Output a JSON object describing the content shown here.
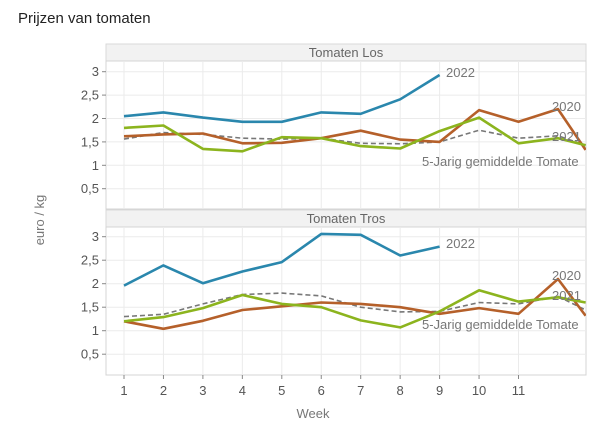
{
  "chart_data": {
    "type": "line",
    "title": "Prijzen van tomaten",
    "xlabel": "Week",
    "ylabel": "euro / kg",
    "x_ticks": [
      "1",
      "2",
      "3",
      "4",
      "5",
      "6",
      "7",
      "8",
      "9",
      "10",
      "11"
    ],
    "xlim": [
      0.55,
      12.7
    ],
    "ylim": [
      0.0,
      3.2
    ],
    "y_ticks": [
      {
        "value": 0.5,
        "label": "0,5"
      },
      {
        "value": 1,
        "label": "1"
      },
      {
        "value": 1.5,
        "label": "1,5"
      },
      {
        "value": 2,
        "label": "2"
      },
      {
        "value": 2.5,
        "label": "2,5"
      },
      {
        "value": 3,
        "label": "3"
      }
    ],
    "grid": true,
    "legend": "none (direct labels at line ends)",
    "panels": [
      {
        "strip": "Tomaten Los",
        "series": [
          {
            "name": "2022",
            "label": "2022",
            "color": "#2a87ad",
            "dashed": false,
            "x": [
              1,
              2,
              3,
              4,
              5,
              6,
              7,
              8,
              9
            ],
            "values": [
              2.05,
              2.13,
              2.02,
              1.93,
              1.93,
              2.13,
              2.1,
              2.41,
              2.93
            ]
          },
          {
            "name": "2020",
            "label": "2020",
            "color": "#b5602a",
            "dashed": false,
            "x": [
              1,
              2,
              3,
              4,
              5,
              6,
              7,
              8,
              9,
              10,
              11,
              12,
              12.7
            ],
            "values": [
              1.62,
              1.66,
              1.68,
              1.47,
              1.48,
              1.58,
              1.74,
              1.55,
              1.5,
              2.18,
              1.93,
              2.2,
              1.33
            ]
          },
          {
            "name": "2021",
            "label": "2021",
            "color": "#8cb41e",
            "dashed": false,
            "x": [
              1,
              2,
              3,
              4,
              5,
              6,
              7,
              8,
              9,
              10,
              11,
              12,
              12.7
            ],
            "values": [
              1.8,
              1.85,
              1.35,
              1.3,
              1.6,
              1.58,
              1.41,
              1.36,
              1.73,
              2.02,
              1.47,
              1.58,
              1.43
            ]
          },
          {
            "name": "5-Jarig gemiddelde Tomaten",
            "label": "5-Jarig gemiddelde Tomate",
            "color": "#777777",
            "dashed": true,
            "x": [
              1,
              2,
              3,
              4,
              5,
              6,
              7,
              8,
              9,
              10,
              11,
              12,
              12.7
            ],
            "values": [
              1.56,
              1.7,
              1.66,
              1.58,
              1.56,
              1.58,
              1.47,
              1.46,
              1.5,
              1.75,
              1.58,
              1.63,
              1.43
            ]
          }
        ]
      },
      {
        "strip": "Tomaten Tros",
        "series": [
          {
            "name": "2022",
            "label": "2022",
            "color": "#2a87ad",
            "dashed": false,
            "x": [
              1,
              2,
              3,
              4,
              5,
              6,
              7,
              8,
              9
            ],
            "values": [
              1.96,
              2.39,
              2.01,
              2.26,
              2.46,
              3.06,
              3.04,
              2.6,
              2.79
            ]
          },
          {
            "name": "2020",
            "label": "2020",
            "color": "#b5602a",
            "dashed": false,
            "x": [
              1,
              2,
              3,
              4,
              5,
              6,
              7,
              8,
              9,
              10,
              11,
              12,
              12.7
            ],
            "values": [
              1.2,
              1.04,
              1.21,
              1.44,
              1.52,
              1.6,
              1.57,
              1.5,
              1.36,
              1.48,
              1.36,
              2.1,
              1.32
            ]
          },
          {
            "name": "2021",
            "label": "2021",
            "color": "#8cb41e",
            "dashed": false,
            "x": [
              1,
              2,
              3,
              4,
              5,
              6,
              7,
              8,
              9,
              10,
              11,
              12,
              12.7
            ],
            "values": [
              1.2,
              1.29,
              1.48,
              1.76,
              1.57,
              1.5,
              1.22,
              1.07,
              1.41,
              1.86,
              1.62,
              1.71,
              1.6
            ]
          },
          {
            "name": "5-Jarig gemiddelde Tomaten",
            "label": "5-Jarig gemiddelde Tomate",
            "color": "#777777",
            "dashed": true,
            "x": [
              1,
              2,
              3,
              4,
              5,
              6,
              7,
              8,
              9,
              10,
              11,
              12,
              12.7
            ],
            "values": [
              1.3,
              1.35,
              1.57,
              1.77,
              1.8,
              1.74,
              1.5,
              1.4,
              1.41,
              1.6,
              1.57,
              1.73,
              1.44
            ]
          }
        ]
      }
    ]
  }
}
